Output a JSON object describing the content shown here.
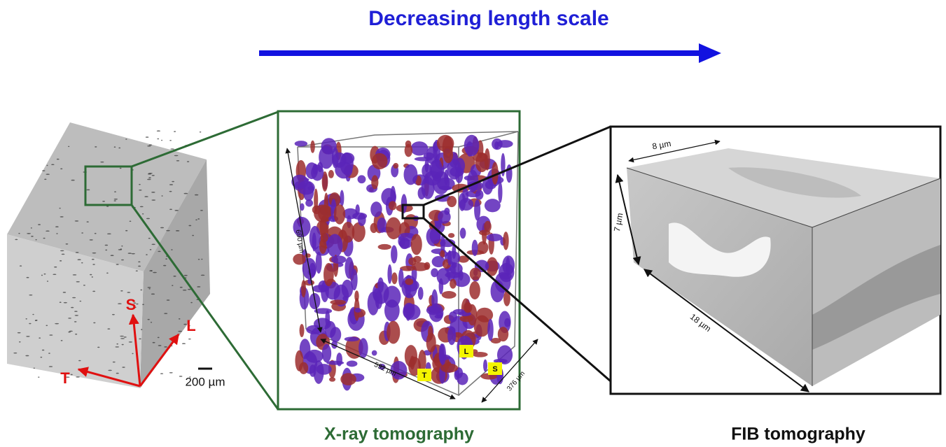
{
  "header": {
    "title": "Decreasing length scale"
  },
  "panels": [
    {
      "axes": [
        "S",
        "L",
        "T"
      ],
      "scale_bar": "200 µm"
    },
    {
      "dimensions": [
        "690 µm",
        "592 µm",
        "376 µm"
      ],
      "axis_tags": [
        "T",
        "L",
        "S"
      ],
      "caption": "X-ray tomography"
    },
    {
      "dimensions": [
        "8 µm",
        "7 µm",
        "18 µm"
      ],
      "caption": "FIB tomography"
    }
  ]
}
